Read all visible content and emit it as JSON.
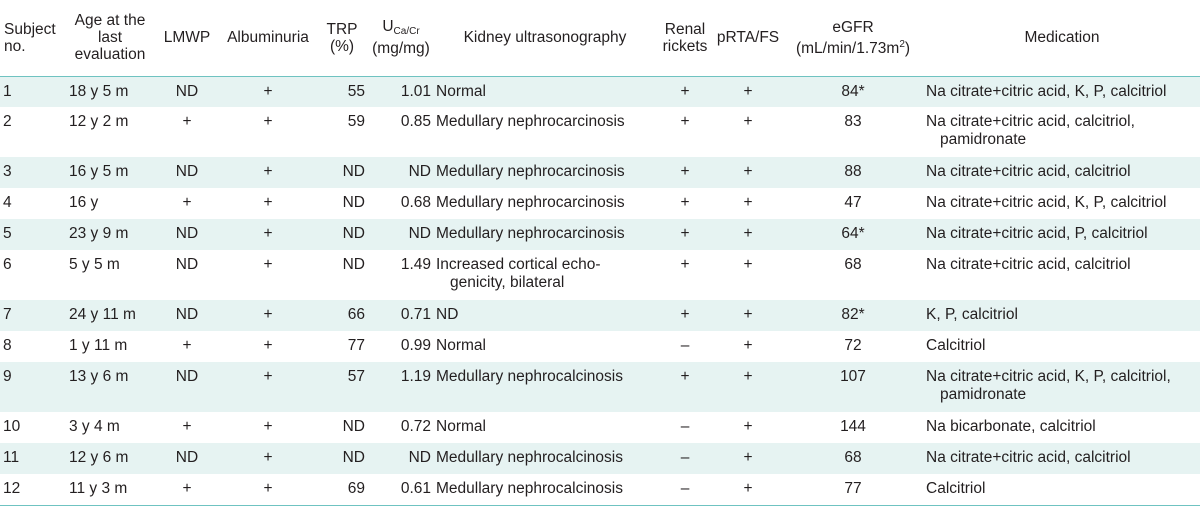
{
  "headers": {
    "subject": "Subject no.",
    "age": "Age at the last evaluation",
    "lmwp": "LMWP",
    "albuminuria": "Albuminuria",
    "trp": "TRP (%)",
    "uca_main": "U",
    "uca_sub": "Ca/Cr",
    "uca_unit": "(mg/mg)",
    "kidney": "Kidney ultrasonography",
    "rickets": "Renal rickets",
    "prta": "pRTA/FS",
    "egfr_main": "eGFR",
    "egfr_unit": "(mL/min/1.73m",
    "egfr_sup": "2",
    "egfr_close": ")",
    "medication": "Medication"
  },
  "rows": [
    {
      "no": "1",
      "age": "18 y 5 m",
      "lmwp": "ND",
      "alb": "+",
      "trp": "55",
      "uca": "1.01",
      "kidney": "Normal",
      "rickets": "+",
      "prta": "+",
      "egfr": "84*",
      "med": "Na citrate+citric acid, K, P, calcitriol"
    },
    {
      "no": "2",
      "age": "12 y 2 m",
      "lmwp": "+",
      "alb": "+",
      "trp": "59",
      "uca": "0.85",
      "kidney": "Medullary nephrocarcinosis",
      "rickets": "+",
      "prta": "+",
      "egfr": "83",
      "med": "Na citrate+citric acid, calcitriol, pamidronate"
    },
    {
      "no": "3",
      "age": "16 y 5 m",
      "lmwp": "ND",
      "alb": "+",
      "trp": "ND",
      "uca": "ND",
      "kidney": "Medullary nephrocarcinosis",
      "rickets": "+",
      "prta": "+",
      "egfr": "88",
      "med": "Na citrate+citric acid,  calcitriol"
    },
    {
      "no": "4",
      "age": "16 y",
      "lmwp": "+",
      "alb": "+",
      "trp": "ND",
      "uca": "0.68",
      "kidney": "Medullary nephrocarcinosis",
      "rickets": "+",
      "prta": "+",
      "egfr": "47",
      "med": "Na citrate+citric acid, K, P, calcitriol"
    },
    {
      "no": "5",
      "age": "23 y 9 m",
      "lmwp": "ND",
      "alb": "+",
      "trp": "ND",
      "uca": "ND",
      "kidney": "Medullary nephrocarcinosis",
      "rickets": "+",
      "prta": "+",
      "egfr": "64*",
      "med": "Na citrate+citric acid, P, calcitriol"
    },
    {
      "no": "6",
      "age": "5 y 5 m",
      "lmwp": "ND",
      "alb": "+",
      "trp": "ND",
      "uca": "1.49",
      "kidney": "Increased cortical echo-genicity, bilateral",
      "rickets": "+",
      "prta": "+",
      "egfr": "68",
      "med": "Na citrate+citric acid,  calcitriol"
    },
    {
      "no": "7",
      "age": "24 y 11 m",
      "lmwp": "ND",
      "alb": "+",
      "trp": "66",
      "uca": "0.71",
      "kidney": "ND",
      "rickets": "+",
      "prta": "+",
      "egfr": "82*",
      "med": "K, P, calcitriol"
    },
    {
      "no": "8",
      "age": "1 y 11 m",
      "lmwp": "+",
      "alb": "+",
      "trp": "77",
      "uca": "0.99",
      "kidney": "Normal",
      "rickets": "–",
      "prta": "+",
      "egfr": "72",
      "med": "Calcitriol"
    },
    {
      "no": "9",
      "age": "13 y 6 m",
      "lmwp": "ND",
      "alb": "+",
      "trp": "57",
      "uca": "1.19",
      "kidney": "Medullary nephrocalcinosis",
      "rickets": "+",
      "prta": "+",
      "egfr": "107",
      "med": "Na citrate+citric acid, K, P, calcitriol, pamidronate"
    },
    {
      "no": "10",
      "age": "3 y 4 m",
      "lmwp": "+",
      "alb": "+",
      "trp": "ND",
      "uca": "0.72",
      "kidney": "Normal",
      "rickets": "–",
      "prta": "+",
      "egfr": "144",
      "med": "Na bicarbonate, calcitriol"
    },
    {
      "no": "11",
      "age": "12 y 6 m",
      "lmwp": "ND",
      "alb": "+",
      "trp": "ND",
      "uca": "ND",
      "kidney": "Medullary nephrocalcinosis",
      "rickets": "–",
      "prta": "+",
      "egfr": "68",
      "med": "Na citrate+citric acid, calcitriol"
    },
    {
      "no": "12",
      "age": "11 y 3 m",
      "lmwp": "+",
      "alb": "+",
      "trp": "69",
      "uca": "0.61",
      "kidney": "Medullary nephrocalcinosis",
      "rickets": "–",
      "prta": "+",
      "egfr": "77",
      "med": "Calcitriol"
    }
  ]
}
